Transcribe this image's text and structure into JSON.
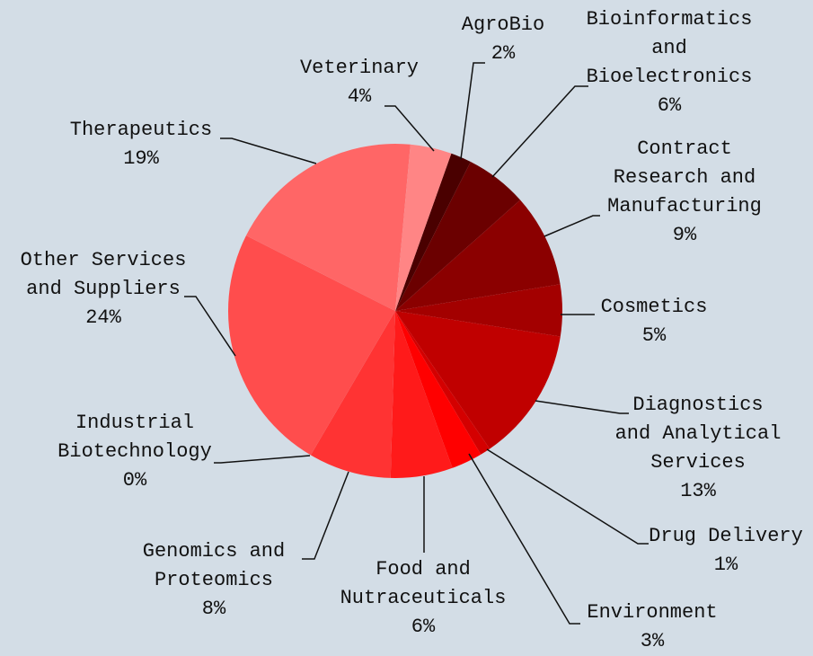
{
  "chart_data": {
    "type": "pie",
    "categories": [
      "AgroBio",
      "Bioinformatics and Bioelectronics",
      "Contract Research and Manufacturing",
      "Cosmetics",
      "Diagnostics and Analytical Services",
      "Drug Delivery",
      "Environment",
      "Food and Nutraceuticals",
      "Genomics and Proteomics",
      "Industrial Biotechnology",
      "Other Services and Suppliers",
      "Therapeutics",
      "Veterinary"
    ],
    "values": [
      2,
      6,
      9,
      5,
      13,
      1,
      3,
      6,
      8,
      0,
      24,
      19,
      4
    ],
    "value_labels": [
      "2%",
      "6%",
      "9%",
      "5%",
      "13%",
      "1%",
      "3%",
      "6%",
      "8%",
      "0%",
      "24%",
      "19%",
      "4%"
    ],
    "colors": [
      "#4a0000",
      "#6b0000",
      "#8b0000",
      "#a30000",
      "#c00000",
      "#d40000",
      "#ff0000",
      "#ff1a1a",
      "#ff3333",
      "#ff4040",
      "#ff4d4d",
      "#ff6666",
      "#ff8585"
    ]
  }
}
